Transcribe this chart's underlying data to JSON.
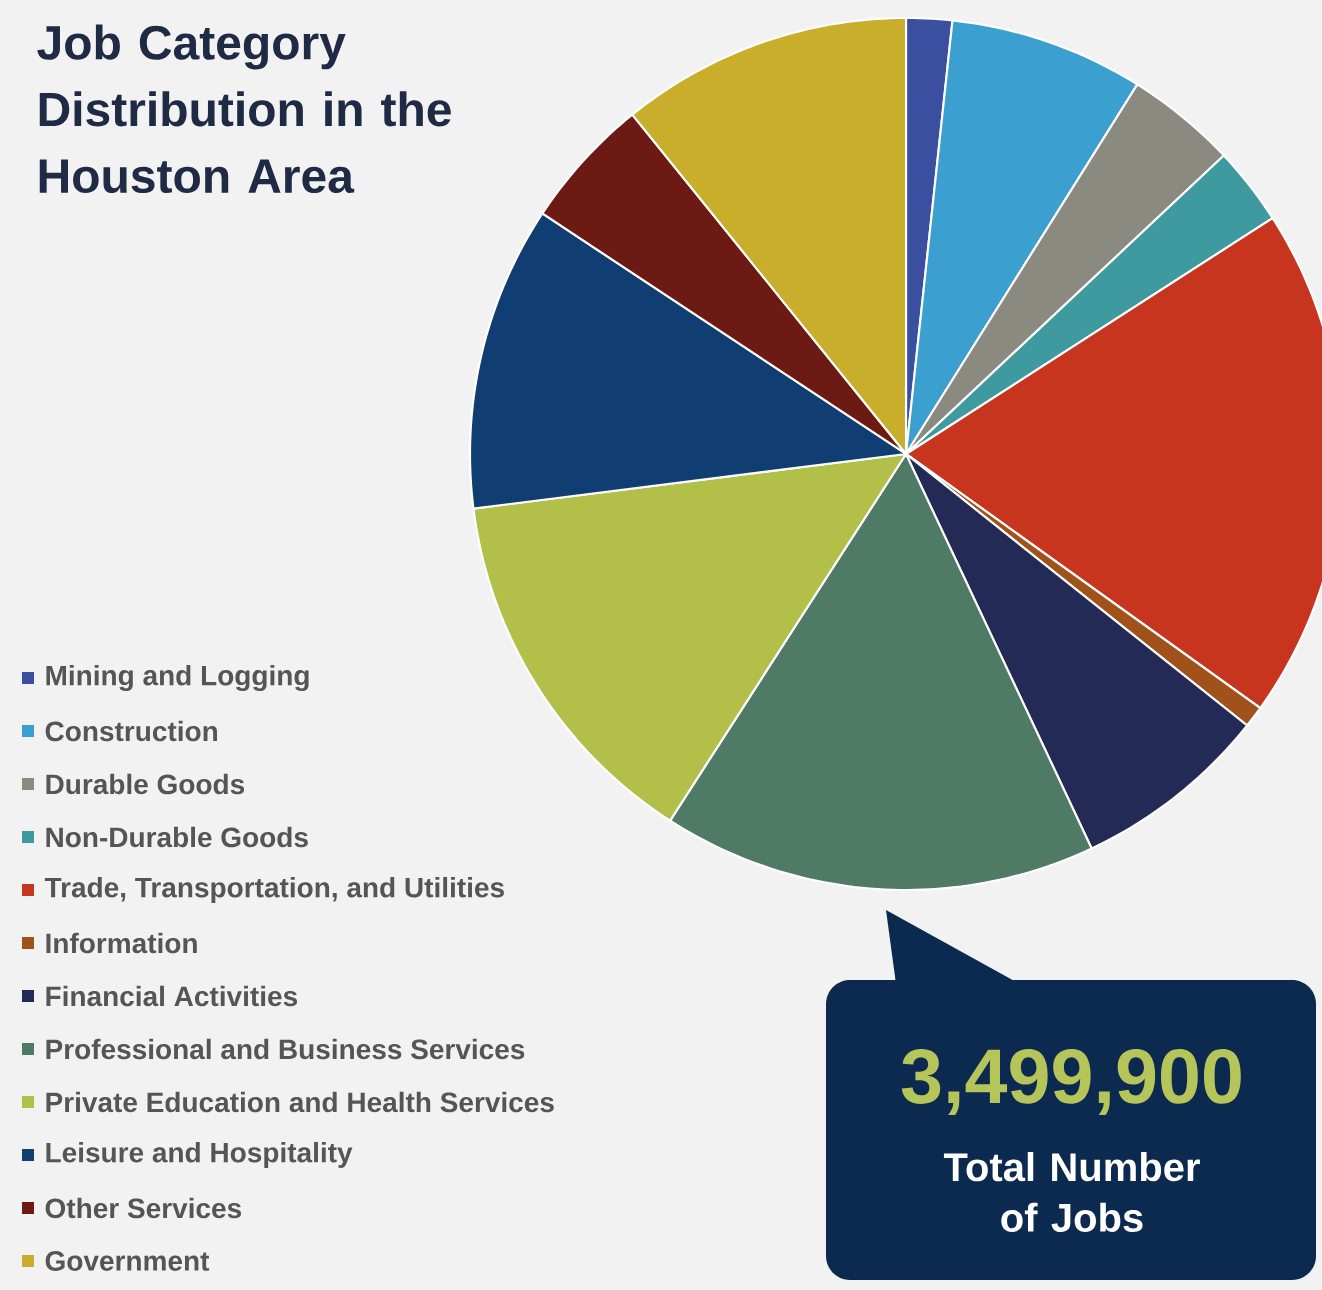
{
  "chart_data": {
    "type": "pie",
    "title": "Job Category Distribution in the Houston Area",
    "categories": [
      "Mining and Logging",
      "Construction",
      "Durable Goods",
      "Non-Durable Goods",
      "Trade, Transportation, and Utilities",
      "Information",
      "Financial Activities",
      "Professional and Business Services",
      "Private Education and Health Services",
      "Leisure and Hospitality",
      "Other Services",
      "Government"
    ],
    "values": [
      1.7,
      7.2,
      4.1,
      2.9,
      19.0,
      0.8,
      7.3,
      16.1,
      13.9,
      11.3,
      4.9,
      10.8
    ],
    "colors": [
      "#3a4fa0",
      "#3b9fd0",
      "#8a8a80",
      "#3f9aa0",
      "#c8351e",
      "#a0521a",
      "#222a55",
      "#4e7a66",
      "#b2c04a",
      "#103e72",
      "#6e1a14",
      "#c9ae2c"
    ],
    "legend": "bottom left",
    "annotations": [
      "3,499,900",
      "Total Number of Jobs"
    ]
  }
}
